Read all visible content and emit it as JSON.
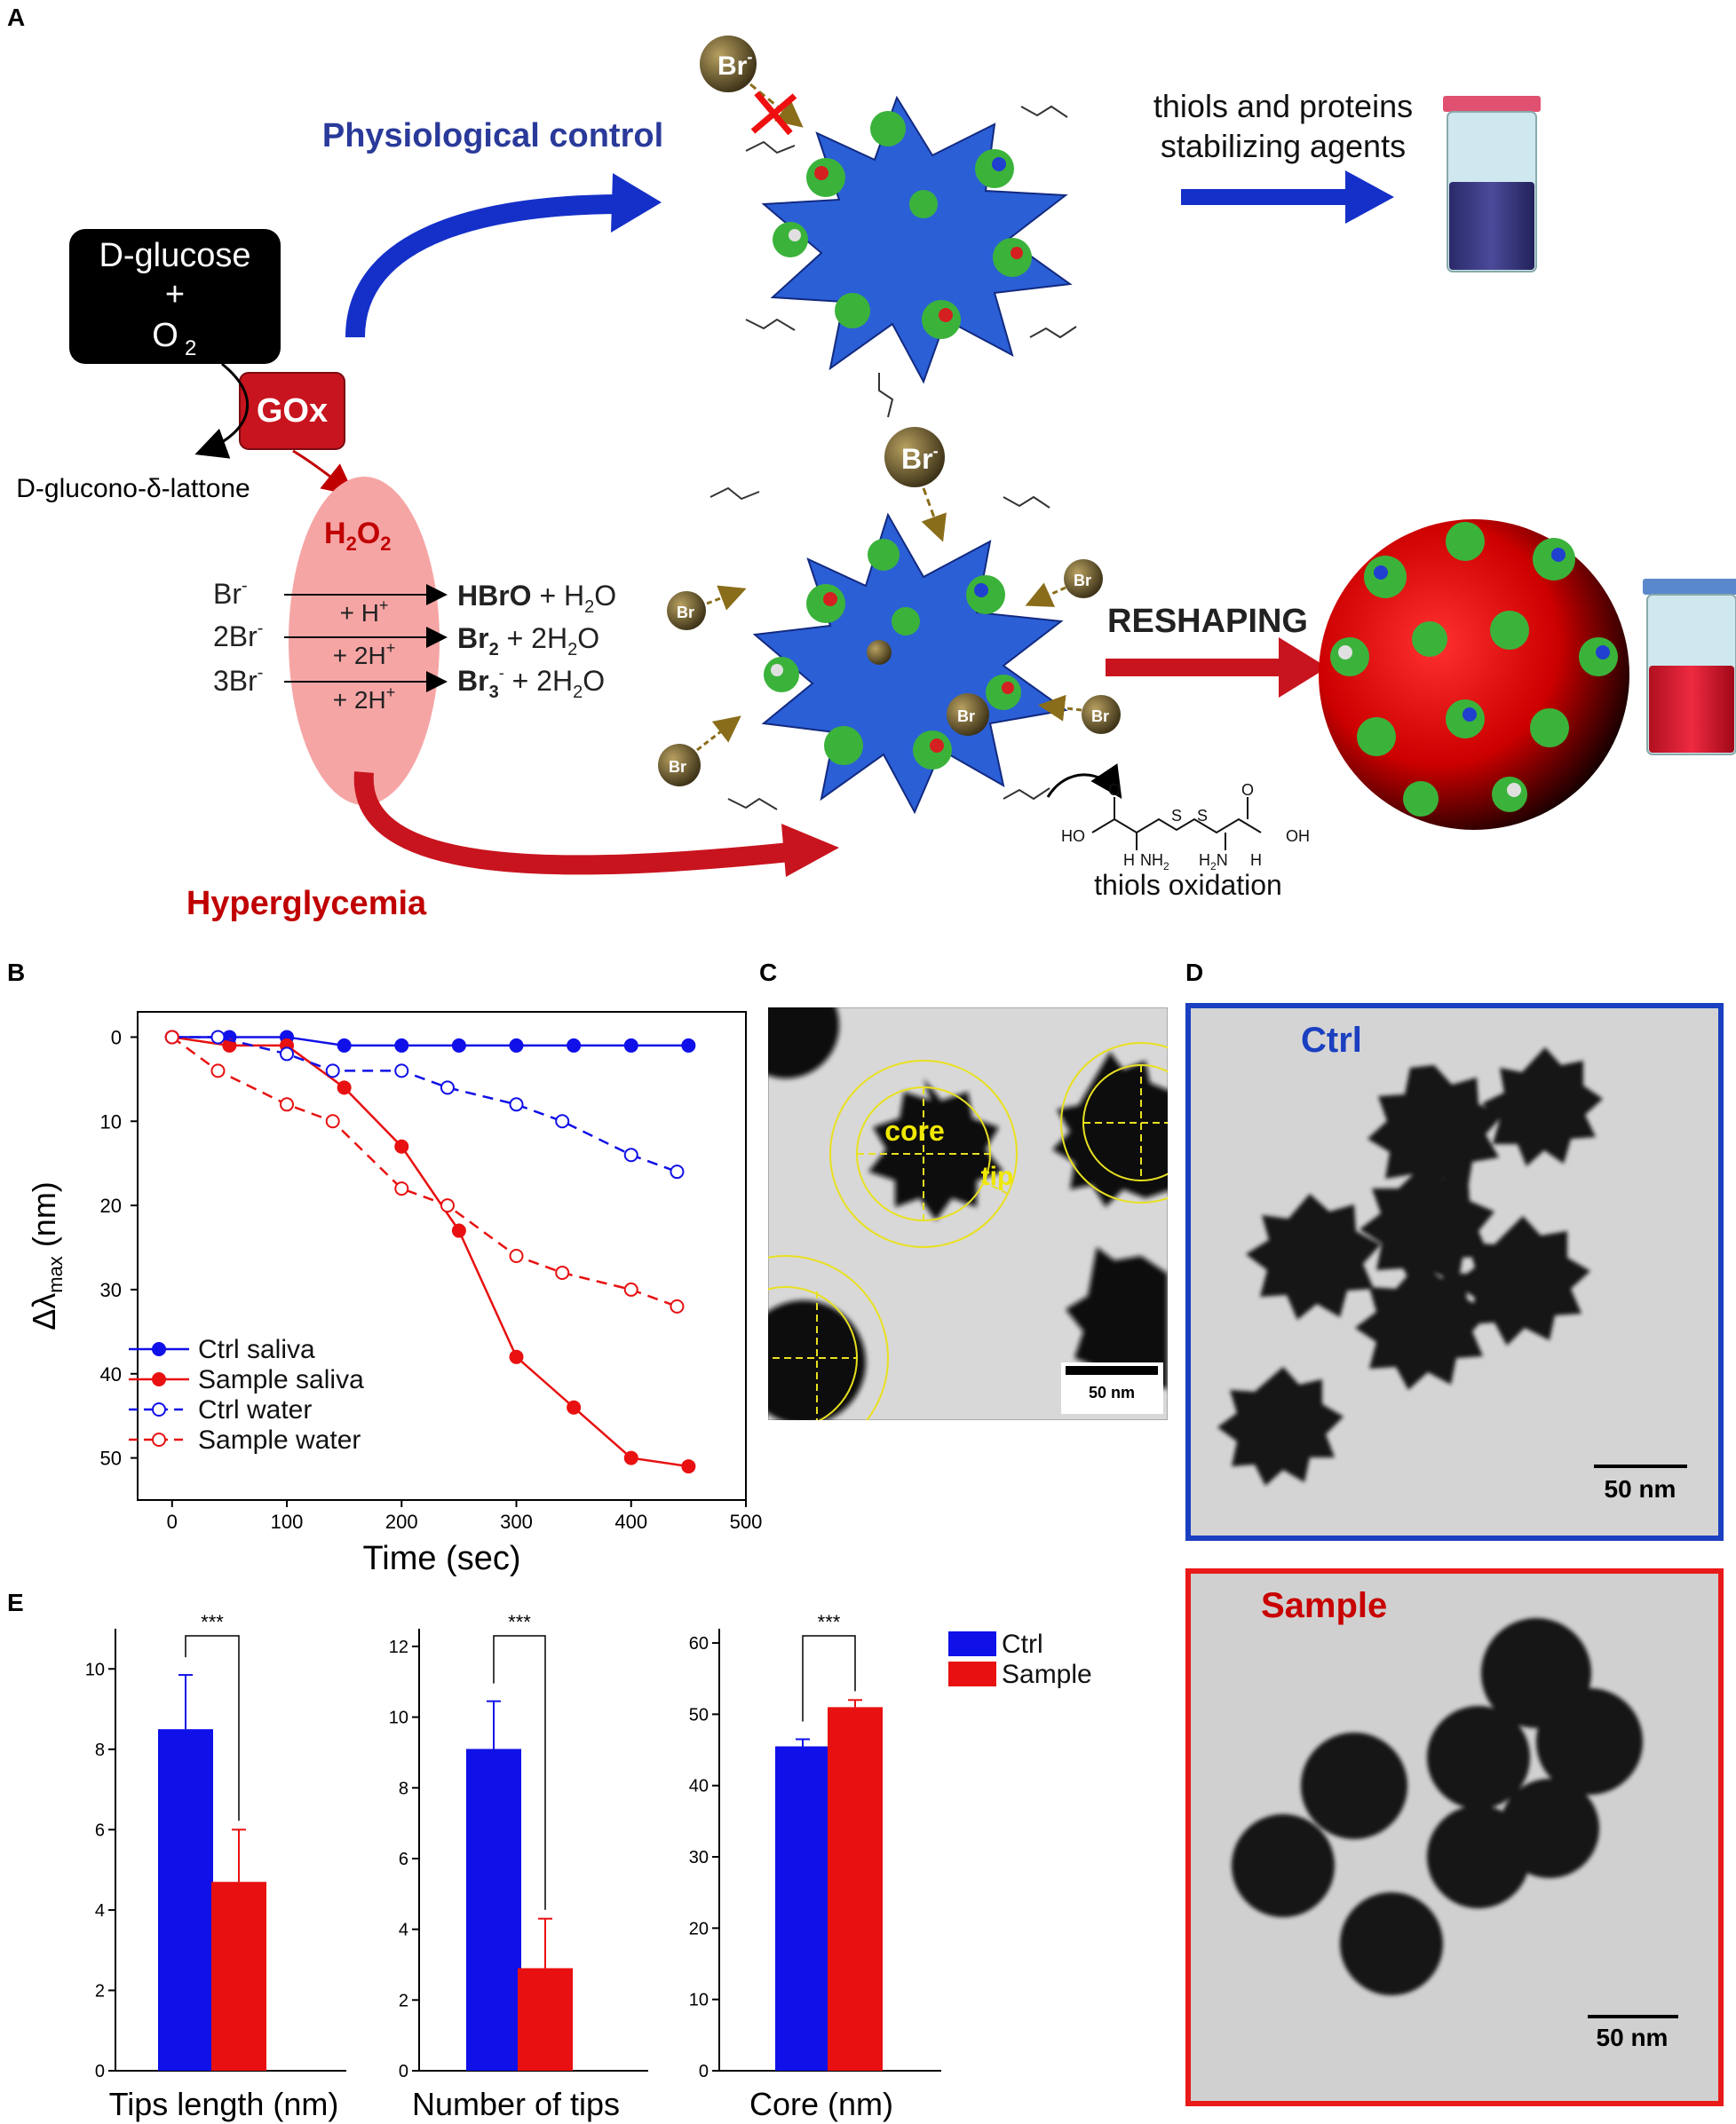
{
  "panels": {
    "A": "A",
    "B": "B",
    "C": "C",
    "D": "D",
    "E": "E"
  },
  "schemeA": {
    "reactant_line1": "D-glucose",
    "reactant_line2": "+",
    "reactant_line3": "O",
    "reactant_line3_sub": "2",
    "enzyme": "GOx",
    "byproduct": "D-glucono-δ-lattone",
    "peroxide": "H",
    "peroxide_sub1": "2",
    "peroxide_mid": "O",
    "peroxide_sub2": "2",
    "control_label": "Physiological control",
    "stabilizing_line1": "thiols and proteins",
    "stabilizing_line2": "stabilizing agents",
    "hyper_label": "Hyperglycemia",
    "reshaping_label": "RESHAPING",
    "thiols_oxidation": "thiols oxidation",
    "bromide_ion": "Br",
    "reactions": [
      {
        "lhs": "Br",
        "rhs_bold": "HBrO",
        "rhs_rest": " + H",
        "rhs_sub": "2",
        "rhs_end": "O",
        "cat": "+ H"
      },
      {
        "lhs": "2Br",
        "rhs_bold": "Br",
        "rhs_bold_sub": "2",
        "rhs_rest": " + 2H",
        "rhs_sub": "2",
        "rhs_end": "O",
        "cat": "+ 2H"
      },
      {
        "lhs": "3Br",
        "rhs_bold": "Br",
        "rhs_bold_sub": "3",
        "rhs_rest": " + 2H",
        "rhs_sub": "2",
        "rhs_end": "O",
        "cat": "+ 2H"
      }
    ],
    "molecule_labels": {
      "ho": "HO",
      "oh": "OH",
      "o1": "O",
      "o2": "O",
      "h1": "H",
      "h2": "H",
      "nh2": "NH",
      "h2n": "H",
      "s1": "S",
      "s2": "S"
    }
  },
  "micro_C": {
    "core_label": "core",
    "tip_label": "tip",
    "scale": "50 nm"
  },
  "micro_D": {
    "ctrl_label": "Ctrl",
    "sample_label": "Sample",
    "scale1": "50 nm",
    "scale2": "50 nm"
  },
  "colors": {
    "blue": "#1010e8",
    "red": "#e81010",
    "dark_red": "#c00000",
    "navy": "#2a3a9a"
  },
  "chart_data": [
    {
      "type": "line",
      "xlabel": "Time (sec)",
      "ylabel": "Δλ",
      "ylabel_sub": "max",
      "ylabel_unit": " (nm)",
      "xlim": [
        -30,
        500
      ],
      "ylim": [
        55,
        -3
      ],
      "xticks": [
        0,
        100,
        200,
        300,
        400,
        500
      ],
      "yticks": [
        0,
        10,
        20,
        30,
        40,
        50
      ],
      "legend_position": "lower-left",
      "series": [
        {
          "name": "Ctrl saliva",
          "color": "#1010e8",
          "style": "solid",
          "marker": "filled",
          "x": [
            0,
            50,
            100,
            150,
            200,
            250,
            300,
            350,
            400,
            450
          ],
          "y": [
            0,
            0,
            0,
            1,
            1,
            1,
            1,
            1,
            1,
            1
          ]
        },
        {
          "name": "Sample saliva",
          "color": "#e81010",
          "style": "solid",
          "marker": "filled",
          "x": [
            0,
            50,
            100,
            150,
            200,
            250,
            300,
            350,
            400,
            450
          ],
          "y": [
            0,
            1,
            1,
            6,
            13,
            23,
            38,
            44,
            50,
            51
          ]
        },
        {
          "name": "Ctrl water",
          "color": "#1010e8",
          "style": "dashed",
          "marker": "open",
          "x": [
            0,
            40,
            100,
            140,
            200,
            240,
            300,
            340,
            400,
            440
          ],
          "y": [
            0,
            0,
            2,
            4,
            4,
            6,
            8,
            10,
            14,
            16
          ]
        },
        {
          "name": "Sample water",
          "color": "#e81010",
          "style": "dashed",
          "marker": "open",
          "x": [
            0,
            40,
            100,
            140,
            200,
            240,
            300,
            340,
            400,
            440
          ],
          "y": [
            0,
            4,
            8,
            10,
            18,
            20,
            26,
            28,
            30,
            32
          ]
        }
      ]
    },
    {
      "type": "bar",
      "xlabel": "Tips length (nm)",
      "ylim": [
        0,
        11
      ],
      "yticks": [
        0,
        2,
        4,
        6,
        8,
        10
      ],
      "categories": [
        "Ctrl",
        "Sample"
      ],
      "values": [
        8.5,
        4.7
      ],
      "errors": [
        1.35,
        1.3
      ],
      "significance": "***"
    },
    {
      "type": "bar",
      "xlabel": "Number of tips",
      "ylim": [
        0,
        12.5
      ],
      "yticks": [
        0,
        2,
        4,
        6,
        8,
        10,
        12
      ],
      "categories": [
        "Ctrl",
        "Sample"
      ],
      "values": [
        9.1,
        2.9
      ],
      "errors": [
        1.35,
        1.4
      ],
      "significance": "***"
    },
    {
      "type": "bar",
      "xlabel": "Core (nm)",
      "ylim": [
        0,
        62
      ],
      "yticks": [
        0,
        10,
        20,
        30,
        40,
        50,
        60
      ],
      "categories": [
        "Ctrl",
        "Sample"
      ],
      "values": [
        45.5,
        51
      ],
      "errors": [
        1.0,
        1.0
      ],
      "significance": "***",
      "legend": [
        {
          "name": "Ctrl",
          "color": "#1010e8"
        },
        {
          "name": "Sample",
          "color": "#e81010"
        }
      ]
    }
  ]
}
